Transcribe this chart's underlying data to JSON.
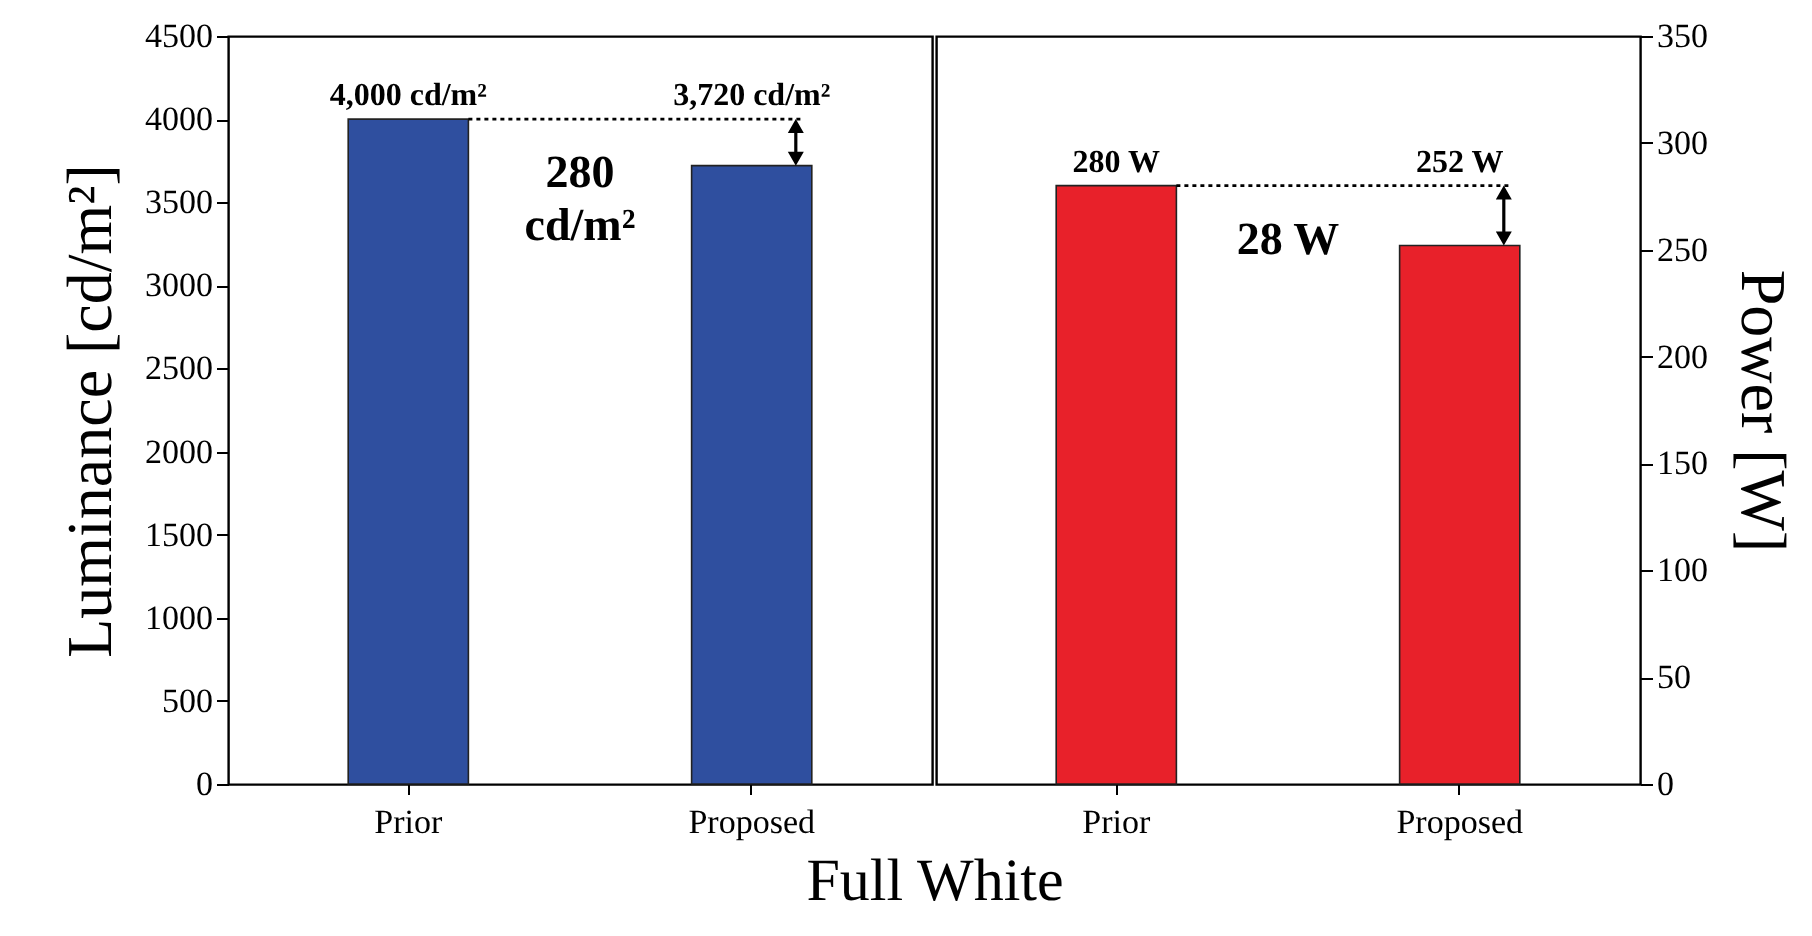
{
  "chart_data": [
    {
      "type": "bar",
      "xlabel": "Full White",
      "ylabel": "Luminance [cd/m²]",
      "categories": [
        "Prior",
        "Proposed"
      ],
      "series": [
        {
          "color": "#2f4f9f",
          "values": [
            4000,
            3720
          ],
          "value_labels": [
            "4,000 cd/m²",
            "3,720 cd/m²"
          ]
        }
      ],
      "ylim": [
        0,
        4500
      ],
      "yticks": [
        0,
        500,
        1000,
        1500,
        2000,
        2500,
        3000,
        3500,
        4000,
        4500
      ],
      "grid": false,
      "annotations": [
        "280 cd/m²"
      ]
    },
    {
      "type": "bar",
      "y2label": "Power [W]",
      "categories": [
        "Prior",
        "Proposed"
      ],
      "series": [
        {
          "color": "#e8212a",
          "values": [
            280,
            252
          ],
          "value_labels": [
            "280 W",
            "252 W"
          ],
          "axis": "y2"
        }
      ],
      "y2lim": [
        0,
        350
      ],
      "y2ticks": [
        0,
        50,
        100,
        150,
        200,
        250,
        300,
        350
      ],
      "grid": false,
      "annotations": [
        "28 W"
      ]
    }
  ]
}
